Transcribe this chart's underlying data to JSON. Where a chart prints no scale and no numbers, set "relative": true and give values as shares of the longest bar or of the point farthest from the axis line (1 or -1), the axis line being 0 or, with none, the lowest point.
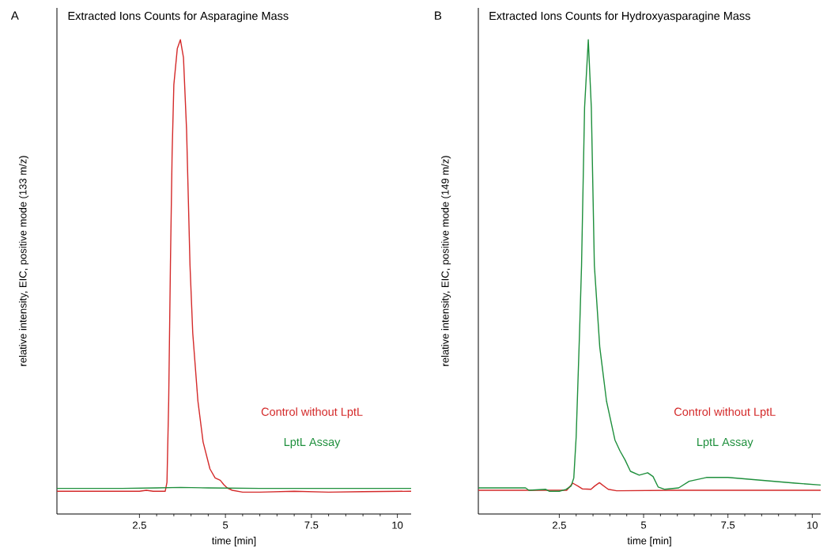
{
  "chart_data": [
    {
      "type": "line",
      "title": "Extracted Ions Counts for Asparagine Mass",
      "xlabel": "time [min]",
      "ylabel": "relative intensity, EIC, positive mode (133 m/z)",
      "annotations": [
        "A"
      ],
      "relative": true,
      "xlim": [
        0.1,
        10.4
      ],
      "xticks": [
        2.5,
        5,
        7.5,
        10
      ],
      "legend": "bottom right",
      "line_style": "solid",
      "series": [
        {
          "name": "Control without LptL",
          "color": "#d42a2a",
          "x": [
            0.1,
            2.5,
            2.7,
            2.9,
            3.25,
            3.3,
            3.35,
            3.4,
            3.45,
            3.5,
            3.6,
            3.69,
            3.78,
            3.87,
            3.97,
            4.05,
            4.2,
            4.35,
            4.55,
            4.7,
            4.85,
            4.95,
            5.05,
            5.2,
            5.5,
            6.0,
            7.0,
            8.0,
            9.0,
            10.4
          ],
          "values": [
            0.048,
            0.048,
            0.05,
            0.048,
            0.048,
            0.067,
            0.238,
            0.524,
            0.762,
            0.905,
            0.981,
            1,
            0.962,
            0.81,
            0.524,
            0.381,
            0.238,
            0.152,
            0.095,
            0.076,
            0.071,
            0.062,
            0.055,
            0.05,
            0.046,
            0.046,
            0.048,
            0.046,
            0.047,
            0.048
          ]
        },
        {
          "name": "LptL Assay",
          "color": "#1e8f3c",
          "x": [
            0.1,
            2.0,
            3.0,
            3.7,
            4.5,
            6.0,
            8.0,
            10.4
          ],
          "values": [
            0.054,
            0.054,
            0.055,
            0.056,
            0.055,
            0.054,
            0.054,
            0.054
          ]
        }
      ]
    },
    {
      "type": "line",
      "title": "Extracted Ions Counts for Hydroxyasparagine Mass",
      "xlabel": "time [min]",
      "ylabel": "relative intensity, EIC, positive mode (149 m/z)",
      "annotations": [
        "B"
      ],
      "relative": true,
      "xlim": [
        0.1,
        10.25
      ],
      "xticks": [
        2.5,
        5,
        7.5,
        10
      ],
      "legend": "bottom right",
      "line_style": "solid",
      "series": [
        {
          "name": "Control without LptL",
          "color": "#d42a2a",
          "x": [
            0.1,
            2.5,
            2.72,
            2.9,
            3.05,
            3.18,
            3.44,
            3.55,
            3.69,
            3.82,
            3.95,
            4.2,
            6.0,
            8.0,
            10.25
          ],
          "values": [
            0.05,
            0.05,
            0.05,
            0.065,
            0.059,
            0.053,
            0.052,
            0.059,
            0.066,
            0.059,
            0.052,
            0.049,
            0.05,
            0.05,
            0.05
          ]
        },
        {
          "name": "LptL Assay",
          "color": "#1e8f3c",
          "x": [
            0.1,
            1.5,
            1.6,
            2.1,
            2.2,
            2.5,
            2.7,
            2.85,
            2.93,
            3.0,
            3.1,
            3.16,
            3.25,
            3.36,
            3.45,
            3.54,
            3.7,
            3.9,
            4.15,
            4.3,
            4.45,
            4.61,
            4.87,
            5.12,
            5.28,
            5.43,
            5.63,
            6.04,
            6.35,
            6.86,
            7.5,
            8.5,
            9.5,
            10.25
          ],
          "values": [
            0.055,
            0.055,
            0.05,
            0.052,
            0.048,
            0.048,
            0.052,
            0.059,
            0.076,
            0.162,
            0.381,
            0.524,
            0.857,
            1,
            0.857,
            0.524,
            0.352,
            0.238,
            0.156,
            0.133,
            0.114,
            0.09,
            0.082,
            0.087,
            0.079,
            0.057,
            0.052,
            0.055,
            0.069,
            0.077,
            0.077,
            0.071,
            0.065,
            0.061
          ]
        }
      ]
    }
  ]
}
